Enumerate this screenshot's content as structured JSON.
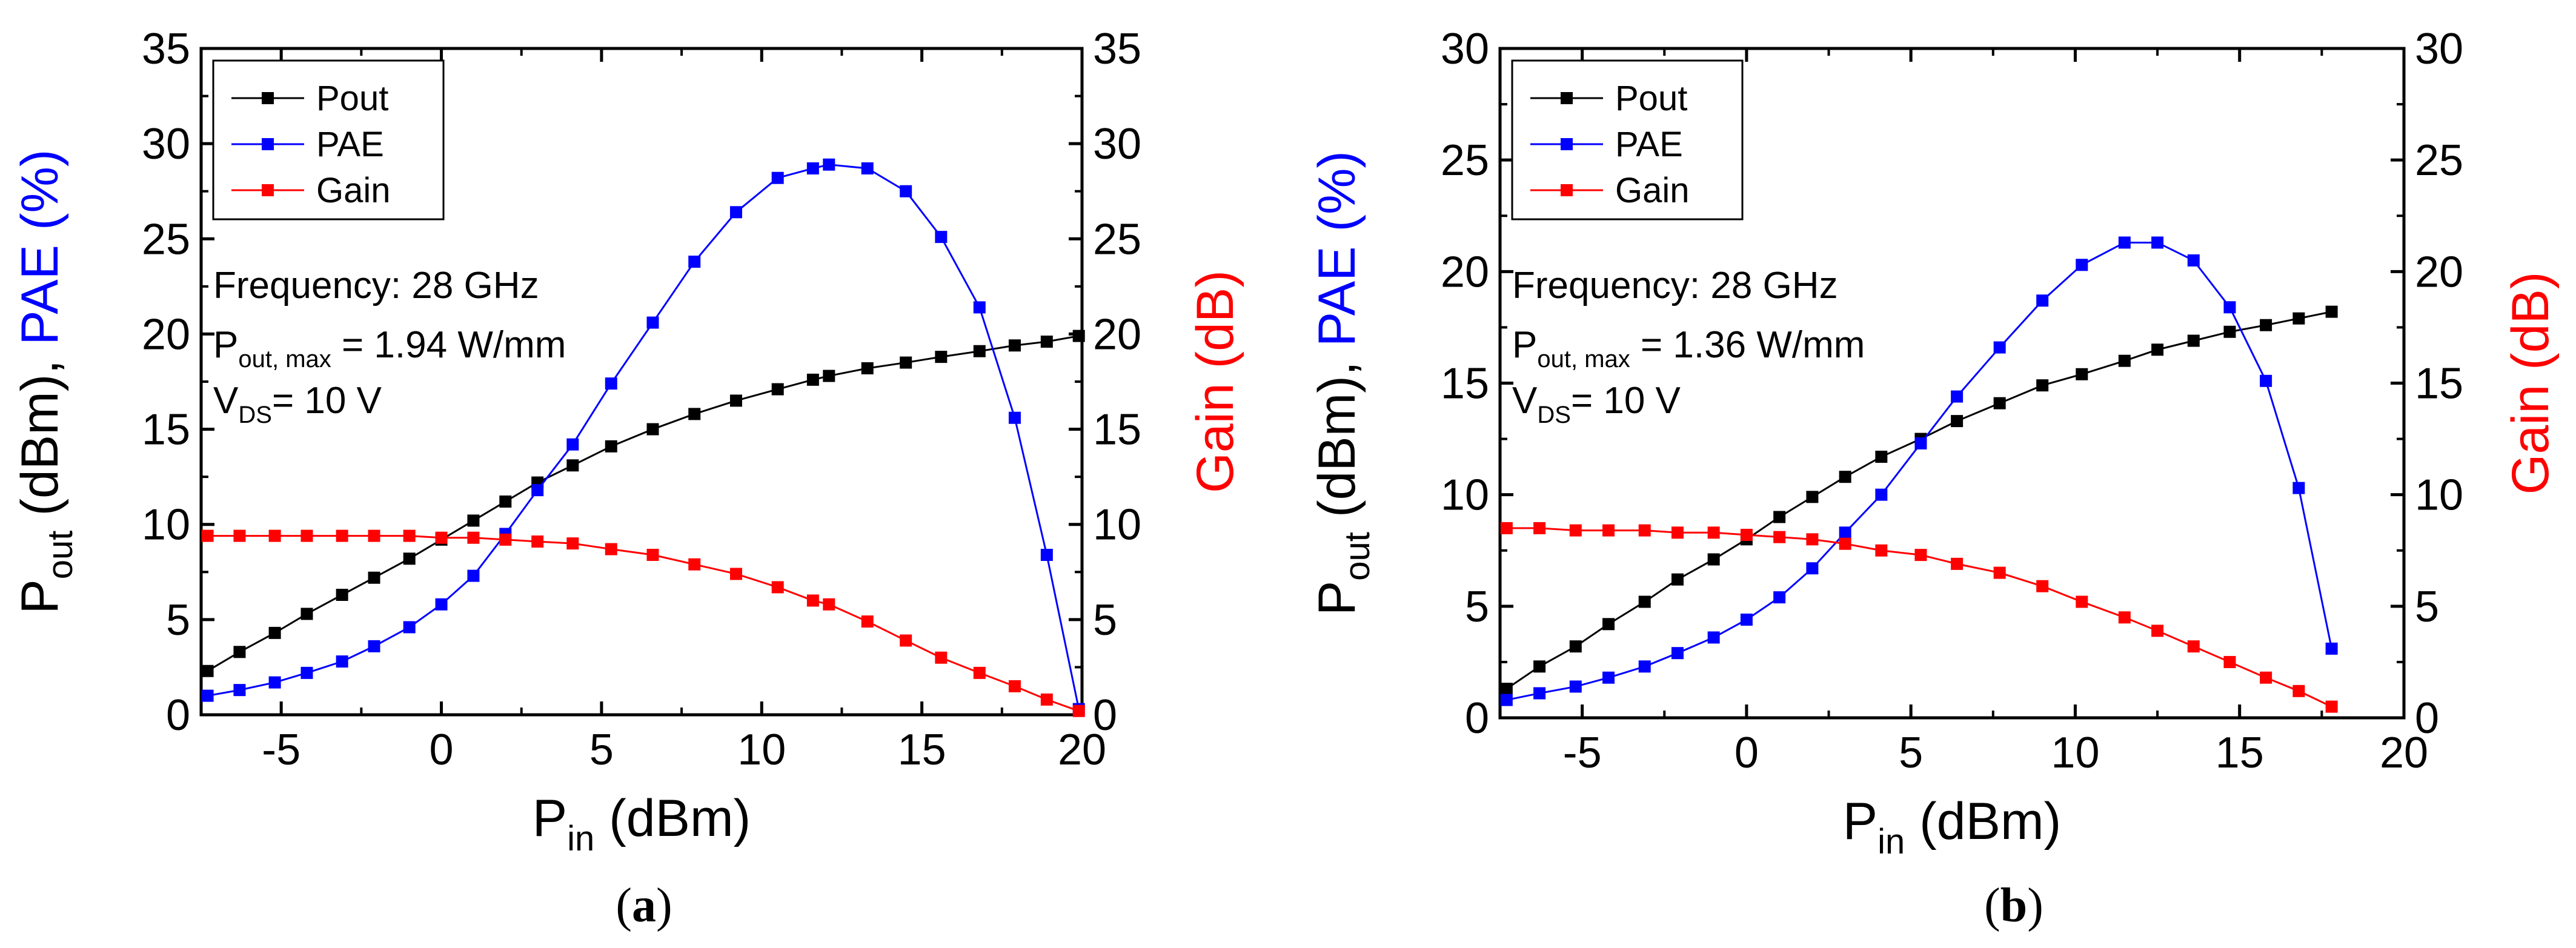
{
  "chart_data": [
    {
      "type": "line",
      "panel_label": "a",
      "xlabel_main": "P",
      "xlabel_sub": "in",
      "xlabel_unit": " (dBm)",
      "ylabel_left_main": "P",
      "ylabel_left_sub": "out",
      "ylabel_left_unit": " (dBm), ",
      "ylabel_left_pae": "PAE (%)",
      "ylabel_right": "Gain (dB)",
      "xlim": [
        -7.5,
        20
      ],
      "ylim": [
        0,
        35
      ],
      "ylim_right": [
        0,
        35
      ],
      "xticks": [
        -5,
        0,
        5,
        10,
        15,
        20
      ],
      "yticks": [
        0,
        5,
        10,
        15,
        20,
        25,
        30,
        35
      ],
      "legend": [
        "Pout",
        "PAE",
        "Gain"
      ],
      "annotation": {
        "freq": "Frequency: 28 GHz",
        "pmax_main": "P",
        "pmax_sub": "out, max",
        "pmax_val": " = 1.94 W/mm",
        "vds_main": "V",
        "vds_sub": "DS",
        "vds_val": "= 10 V"
      },
      "x": [
        -7.3,
        -6.3,
        -5.2,
        -4.2,
        -3.1,
        -2.1,
        -1.0,
        0.0,
        1.0,
        2.0,
        3.0,
        4.1,
        5.3,
        6.6,
        7.9,
        9.2,
        10.5,
        11.6,
        12.1,
        13.3,
        14.5,
        15.6,
        16.8,
        17.9,
        18.9,
        19.9
      ],
      "series": [
        {
          "name": "Pout",
          "color": "#000000",
          "values": [
            2.3,
            3.3,
            4.3,
            5.3,
            6.3,
            7.2,
            8.2,
            9.2,
            10.2,
            11.2,
            12.2,
            13.1,
            14.1,
            15.0,
            15.8,
            16.5,
            17.1,
            17.6,
            17.8,
            18.2,
            18.5,
            18.8,
            19.1,
            19.4,
            19.6,
            19.9
          ]
        },
        {
          "name": "PAE",
          "color": "#0000ff",
          "values": [
            1.0,
            1.3,
            1.7,
            2.2,
            2.8,
            3.6,
            4.6,
            5.8,
            7.3,
            9.5,
            11.8,
            14.2,
            17.4,
            20.6,
            23.8,
            26.4,
            28.2,
            28.7,
            28.9,
            28.7,
            27.5,
            25.1,
            21.4,
            15.6,
            8.4,
            0.3
          ]
        },
        {
          "name": "Gain",
          "color": "#ff0000",
          "values": [
            9.4,
            9.4,
            9.4,
            9.4,
            9.4,
            9.4,
            9.4,
            9.3,
            9.3,
            9.2,
            9.1,
            9.0,
            8.7,
            8.4,
            7.9,
            7.4,
            6.7,
            6.0,
            5.8,
            4.9,
            3.9,
            3.0,
            2.2,
            1.5,
            0.8,
            0.2
          ]
        }
      ]
    },
    {
      "type": "line",
      "panel_label": "b",
      "xlabel_main": "P",
      "xlabel_sub": "in",
      "xlabel_unit": " (dBm)",
      "ylabel_left_main": "P",
      "ylabel_left_sub": "out",
      "ylabel_left_unit": " (dBm), ",
      "ylabel_left_pae": "PAE (%)",
      "ylabel_right": "Gain (dB)",
      "xlim": [
        -7.5,
        20
      ],
      "ylim": [
        0,
        30
      ],
      "ylim_right": [
        0,
        30
      ],
      "xticks": [
        -5,
        0,
        5,
        10,
        15,
        20
      ],
      "yticks": [
        0,
        5,
        10,
        15,
        20,
        25,
        30
      ],
      "legend": [
        "Pout",
        "PAE",
        "Gain"
      ],
      "annotation": {
        "freq": "Frequency: 28 GHz",
        "pmax_main": "P",
        "pmax_sub": "out, max",
        "pmax_val": " = 1.36 W/mm",
        "vds_main": "V",
        "vds_sub": "DS",
        "vds_val": "= 10 V"
      },
      "x": [
        -7.3,
        -6.3,
        -5.2,
        -4.2,
        -3.1,
        -2.1,
        -1.0,
        0.0,
        1.0,
        2.0,
        3.0,
        4.1,
        5.3,
        6.4,
        7.7,
        9.0,
        10.2,
        11.5,
        12.5,
        13.6,
        14.7,
        15.8,
        16.8,
        17.8
      ],
      "series": [
        {
          "name": "Pout",
          "color": "#000000",
          "values": [
            1.3,
            2.3,
            3.2,
            4.2,
            5.2,
            6.2,
            7.1,
            8.0,
            9.0,
            9.9,
            10.8,
            11.7,
            12.5,
            13.3,
            14.1,
            14.9,
            15.4,
            16.0,
            16.5,
            16.9,
            17.3,
            17.6,
            17.9,
            18.2
          ]
        },
        {
          "name": "PAE",
          "color": "#0000ff",
          "values": [
            0.8,
            1.1,
            1.4,
            1.8,
            2.3,
            2.9,
            3.6,
            4.4,
            5.4,
            6.7,
            8.3,
            10.0,
            12.3,
            14.4,
            16.6,
            18.7,
            20.3,
            21.3,
            21.3,
            20.5,
            18.4,
            15.1,
            10.3,
            3.1
          ]
        },
        {
          "name": "Gain",
          "color": "#ff0000",
          "values": [
            8.5,
            8.5,
            8.4,
            8.4,
            8.4,
            8.3,
            8.3,
            8.2,
            8.1,
            8.0,
            7.8,
            7.5,
            7.3,
            6.9,
            6.5,
            5.9,
            5.2,
            4.5,
            3.9,
            3.2,
            2.5,
            1.8,
            1.2,
            0.5
          ]
        }
      ]
    }
  ]
}
